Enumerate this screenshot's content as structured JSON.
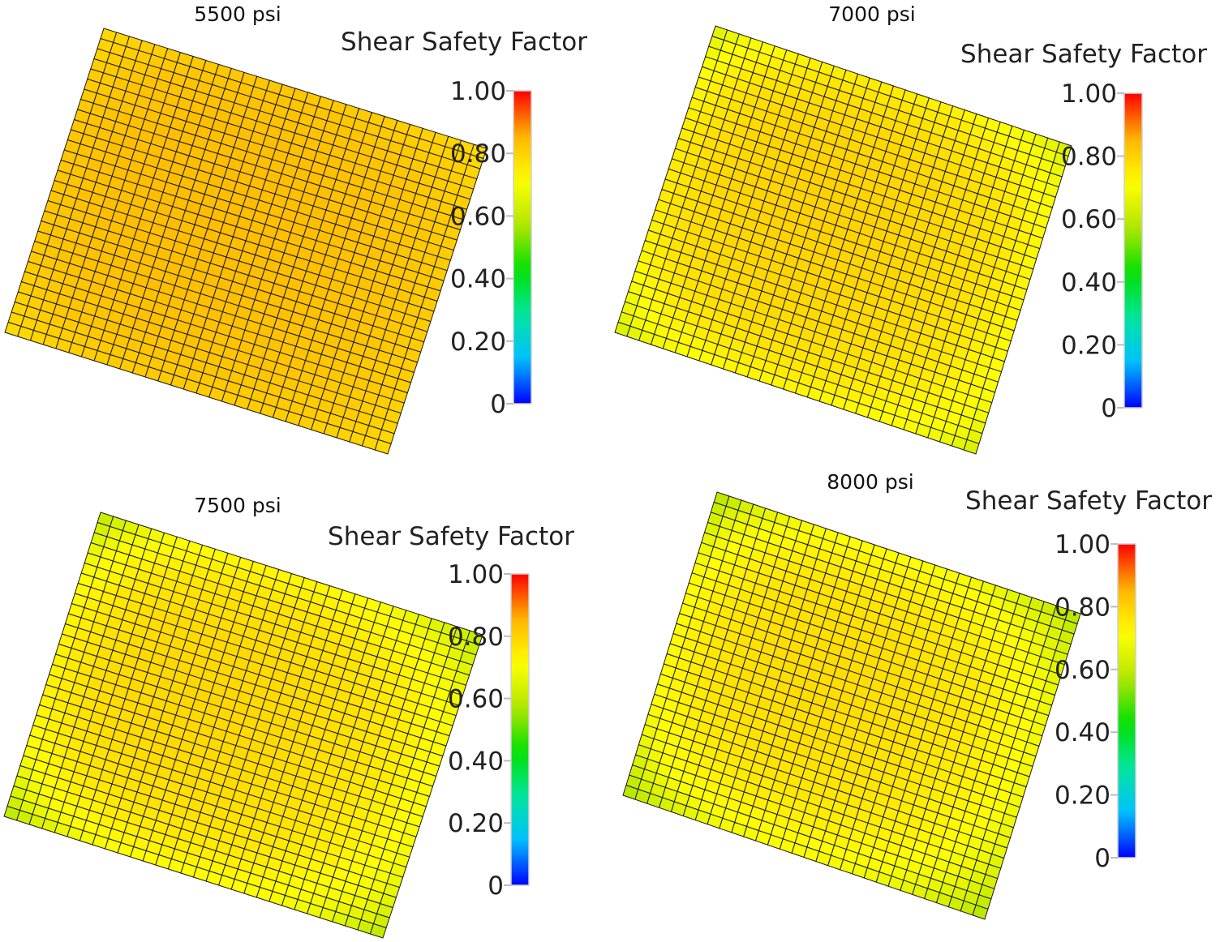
{
  "colormap": [
    "#0000ff",
    "#00c0ff",
    "#00e6a0",
    "#00e000",
    "#b4e600",
    "#ffff00",
    "#ffb400",
    "#ff0000"
  ],
  "chart_data": [
    {
      "type": "heatmap",
      "title": "5500 psi",
      "colorbar_title": "Shear Safety Factor",
      "colorbar_range": [
        0,
        1.0
      ],
      "colorbar_ticks": [
        {
          "value": 1.0,
          "label": "1.00"
        },
        {
          "value": 0.8,
          "label": "0.80"
        },
        {
          "value": 0.6,
          "label": "0.60"
        },
        {
          "value": 0.4,
          "label": "0.40"
        },
        {
          "value": 0.2,
          "label": "0.20"
        },
        {
          "value": 0.0,
          "label": "0"
        }
      ],
      "grid": [
        30,
        30
      ],
      "center_value": 0.84,
      "edge_value": 0.81,
      "corner_value": 0.79
    },
    {
      "type": "heatmap",
      "title": "7000 psi",
      "colorbar_title": "Shear Safety Factor",
      "colorbar_range": [
        0,
        1.0
      ],
      "colorbar_ticks": [
        {
          "value": 1.0,
          "label": "1.00"
        },
        {
          "value": 0.8,
          "label": "0.80"
        },
        {
          "value": 0.6,
          "label": "0.60"
        },
        {
          "value": 0.4,
          "label": "0.40"
        },
        {
          "value": 0.2,
          "label": "0.20"
        },
        {
          "value": 0.0,
          "label": "0"
        }
      ],
      "grid": [
        30,
        30
      ],
      "center_value": 0.8,
      "edge_value": 0.72,
      "corner_value": 0.66
    },
    {
      "type": "heatmap",
      "title": "7500 psi",
      "colorbar_title": "Shear Safety Factor",
      "colorbar_range": [
        0,
        1.0
      ],
      "colorbar_ticks": [
        {
          "value": 1.0,
          "label": "1.00"
        },
        {
          "value": 0.8,
          "label": "0.80"
        },
        {
          "value": 0.6,
          "label": "0.60"
        },
        {
          "value": 0.4,
          "label": "0.40"
        },
        {
          "value": 0.2,
          "label": "0.20"
        },
        {
          "value": 0.0,
          "label": "0"
        }
      ],
      "grid": [
        30,
        30
      ],
      "center_value": 0.79,
      "edge_value": 0.7,
      "corner_value": 0.62
    },
    {
      "type": "heatmap",
      "title": "8000 psi",
      "colorbar_title": "Shear Safety Factor",
      "colorbar_range": [
        0,
        1.0
      ],
      "colorbar_ticks": [
        {
          "value": 1.0,
          "label": "1.00"
        },
        {
          "value": 0.8,
          "label": "0.80"
        },
        {
          "value": 0.6,
          "label": "0.60"
        },
        {
          "value": 0.4,
          "label": "0.40"
        },
        {
          "value": 0.2,
          "label": "0.20"
        },
        {
          "value": 0.0,
          "label": "0"
        }
      ],
      "grid": [
        30,
        30
      ],
      "center_value": 0.78,
      "edge_value": 0.68,
      "corner_value": 0.6
    }
  ]
}
